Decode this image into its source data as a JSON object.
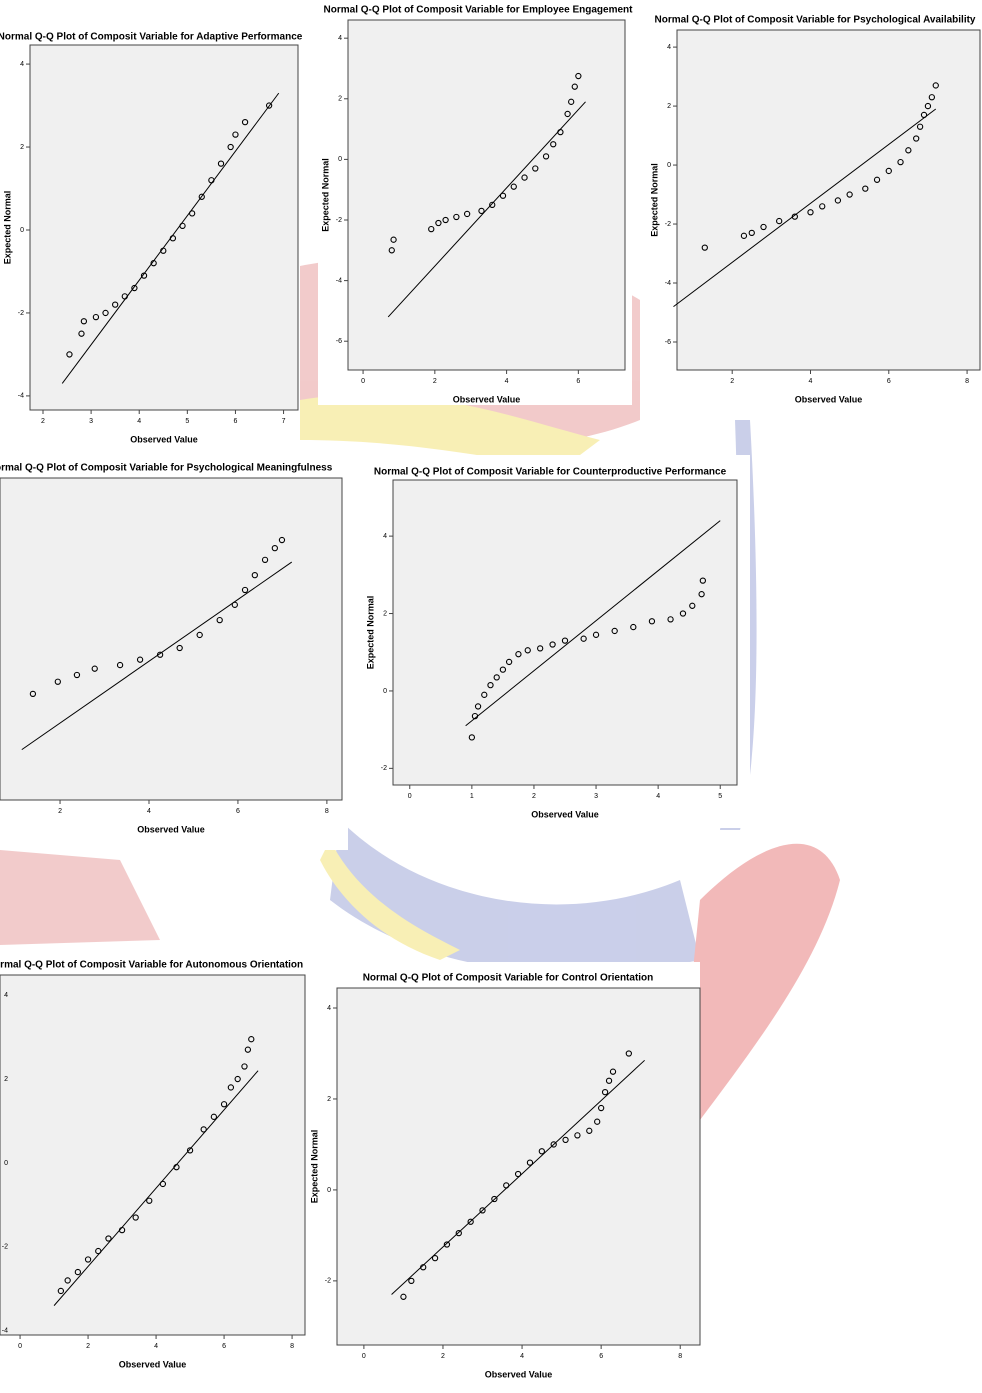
{
  "chart_data": [
    {
      "type": "scatter",
      "title": "Normal Q-Q Plot of Composit Variable for Adaptive Performance",
      "x_label": "Observed Value",
      "y_label": "Expected Normal",
      "color": "#000000",
      "x": [
        2.55,
        2.8,
        2.85,
        3.1,
        3.3,
        3.5,
        3.7,
        3.9,
        4.1,
        4.3,
        4.5,
        4.7,
        4.9,
        5.1,
        5.3,
        5.5,
        5.7,
        5.9,
        6.0,
        6.2,
        6.7
      ],
      "values": [
        -3.0,
        -2.5,
        -2.2,
        -2.1,
        -2.0,
        -1.8,
        -1.6,
        -1.4,
        -1.1,
        -0.8,
        -0.5,
        -0.2,
        0.1,
        0.4,
        0.8,
        1.2,
        1.6,
        2.0,
        2.3,
        2.6,
        3.0
      ],
      "fit_line": {
        "x": [
          2.4,
          6.9
        ],
        "values": [
          -3.7,
          3.3
        ]
      },
      "xlim": [
        1.73,
        7.3
      ],
      "ylim": [
        -4.34,
        4.46
      ],
      "xticks": [
        2,
        3,
        4,
        5,
        6,
        7
      ],
      "yticks": [
        -4,
        -2,
        0,
        2,
        4
      ]
    },
    {
      "type": "scatter",
      "title": "Normal Q-Q Plot of Composit Variable for Employee Engagement",
      "x_label": "Observed Value",
      "y_label": "Expected Normal",
      "color": "#000000",
      "x": [
        0.8,
        0.85,
        1.9,
        2.1,
        2.3,
        2.6,
        2.9,
        3.3,
        3.6,
        3.9,
        4.2,
        4.5,
        4.8,
        5.1,
        5.3,
        5.5,
        5.7,
        5.8,
        5.9,
        6.0
      ],
      "values": [
        -3.0,
        -2.65,
        -2.3,
        -2.1,
        -2.0,
        -1.9,
        -1.8,
        -1.7,
        -1.5,
        -1.2,
        -0.9,
        -0.6,
        -0.3,
        0.1,
        0.5,
        0.9,
        1.5,
        1.9,
        2.4,
        2.75
      ],
      "fit_line": {
        "x": [
          0.7,
          6.2
        ],
        "values": [
          -5.2,
          1.9
        ]
      },
      "xlim": [
        -0.42,
        7.3
      ],
      "ylim": [
        -6.95,
        4.6
      ],
      "xticks": [
        0,
        2,
        4,
        6
      ],
      "yticks": [
        -6,
        -4,
        -2,
        0,
        2,
        4
      ]
    },
    {
      "type": "scatter",
      "title": "Normal Q-Q Plot of Composit Variable for Psychological Availability",
      "x_label": "Observed Value",
      "y_label": "Expected Normal",
      "color": "#000000",
      "x": [
        1.3,
        2.3,
        2.5,
        2.8,
        3.2,
        3.6,
        4.0,
        4.3,
        4.7,
        5.0,
        5.4,
        5.7,
        6.0,
        6.3,
        6.5,
        6.7,
        6.8,
        6.9,
        7.0,
        7.1,
        7.2
      ],
      "values": [
        -2.8,
        -2.4,
        -2.3,
        -2.1,
        -1.9,
        -1.75,
        -1.6,
        -1.4,
        -1.2,
        -1.0,
        -0.8,
        -0.5,
        -0.2,
        0.1,
        0.5,
        0.9,
        1.3,
        1.7,
        2.0,
        2.3,
        2.7
      ],
      "fit_line": {
        "x": [
          0.5,
          7.2
        ],
        "values": [
          -4.8,
          1.9
        ]
      },
      "xlim": [
        0.59,
        8.33
      ],
      "ylim": [
        -6.95,
        4.58
      ],
      "xticks": [
        2,
        4,
        6,
        8
      ],
      "yticks": [
        -6,
        -4,
        -2,
        0,
        2,
        4
      ]
    },
    {
      "type": "scatter",
      "title": "Normal Q-Q Plot of Composit Variable for Psychological Meaningfulness",
      "x_label": "Observed Value",
      "color": "#000000",
      "x": [
        1.39,
        1.95,
        2.38,
        2.78,
        3.35,
        3.8,
        4.25,
        4.69,
        5.14,
        5.59,
        5.93,
        6.16,
        6.38,
        6.61,
        6.83,
        6.99
      ],
      "values": [
        -1.2,
        -0.93,
        -0.78,
        -0.64,
        -0.56,
        -0.44,
        -0.33,
        -0.18,
        0.11,
        0.44,
        0.78,
        1.11,
        1.44,
        1.78,
        2.04,
        2.22
      ],
      "fit_line": {
        "x": [
          1.14,
          7.21
        ],
        "values": [
          -2.44,
          1.73
        ]
      },
      "xlim": [
        0.65,
        8.34
      ],
      "ylim": [
        -3.56,
        3.6
      ],
      "xticks": [
        2,
        4,
        6,
        8
      ]
    },
    {
      "type": "scatter",
      "title": "Normal Q-Q Plot of Composit Variable for Counterproductive Performance",
      "x_label": "Observed Value",
      "y_label": "Expected Normal",
      "color": "#000000",
      "x": [
        1.0,
        1.05,
        1.1,
        1.2,
        1.3,
        1.4,
        1.5,
        1.6,
        1.75,
        1.9,
        2.1,
        2.3,
        2.5,
        2.8,
        3.0,
        3.3,
        3.6,
        3.9,
        4.2,
        4.4,
        4.55,
        4.7,
        4.72
      ],
      "values": [
        -1.2,
        -0.65,
        -0.4,
        -0.1,
        0.15,
        0.35,
        0.55,
        0.75,
        0.95,
        1.05,
        1.1,
        1.2,
        1.3,
        1.35,
        1.45,
        1.55,
        1.65,
        1.8,
        1.85,
        2.0,
        2.2,
        2.5,
        2.85
      ],
      "fit_line": {
        "x": [
          0.9,
          5.0
        ],
        "values": [
          -0.9,
          4.4
        ]
      },
      "xlim": [
        -0.27,
        5.27
      ],
      "ylim": [
        -2.43,
        5.45
      ],
      "xticks": [
        0,
        1,
        2,
        3,
        4,
        5
      ],
      "yticks": [
        -2,
        0,
        2,
        4
      ]
    },
    {
      "type": "scatter",
      "title": "Normal Q-Q Plot of Composit Variable for Autonomous Orientation",
      "x_label": "Observed Value",
      "color": "#000000",
      "x": [
        1.2,
        1.4,
        1.7,
        2.0,
        2.3,
        2.6,
        3.0,
        3.4,
        3.8,
        4.2,
        4.6,
        5.0,
        5.4,
        5.7,
        6.0,
        6.2,
        6.4,
        6.6,
        6.7,
        6.8
      ],
      "values": [
        -3.05,
        -2.8,
        -2.6,
        -2.3,
        -2.1,
        -1.8,
        -1.6,
        -1.3,
        -0.9,
        -0.5,
        -0.1,
        0.3,
        0.8,
        1.1,
        1.4,
        1.8,
        2.0,
        2.3,
        2.7,
        2.95
      ],
      "fit_line": {
        "x": [
          1.0,
          7.0
        ],
        "values": [
          -3.4,
          2.2
        ]
      },
      "xlim": [
        -0.59,
        8.38
      ],
      "ylim": [
        -4.1,
        4.48
      ],
      "xticks": [
        0,
        2,
        4,
        6,
        8
      ],
      "yticks": [
        -4,
        -2,
        0,
        2,
        4
      ]
    },
    {
      "type": "scatter",
      "title": "Normal Q-Q Plot of Composit Variable for Control Orientation",
      "x_label": "Observed Value",
      "y_label": "Expected Normal",
      "color": "#000000",
      "x": [
        1.0,
        1.2,
        1.5,
        1.8,
        2.1,
        2.4,
        2.7,
        3.0,
        3.3,
        3.6,
        3.9,
        4.2,
        4.5,
        4.8,
        5.1,
        5.4,
        5.7,
        5.9,
        6.0,
        6.1,
        6.2,
        6.3,
        6.7
      ],
      "values": [
        -2.35,
        -2.0,
        -1.7,
        -1.5,
        -1.2,
        -0.95,
        -0.7,
        -0.45,
        -0.2,
        0.1,
        0.35,
        0.6,
        0.85,
        1.0,
        1.1,
        1.2,
        1.3,
        1.5,
        1.8,
        2.15,
        2.4,
        2.6,
        3.0
      ],
      "fit_line": {
        "x": [
          0.7,
          7.1
        ],
        "values": [
          -2.3,
          2.85
        ]
      },
      "xlim": [
        -0.68,
        8.5
      ],
      "ylim": [
        -3.41,
        4.44
      ],
      "xticks": [
        0,
        2,
        4,
        6,
        8
      ],
      "yticks": [
        -2,
        0,
        2,
        4
      ]
    }
  ]
}
